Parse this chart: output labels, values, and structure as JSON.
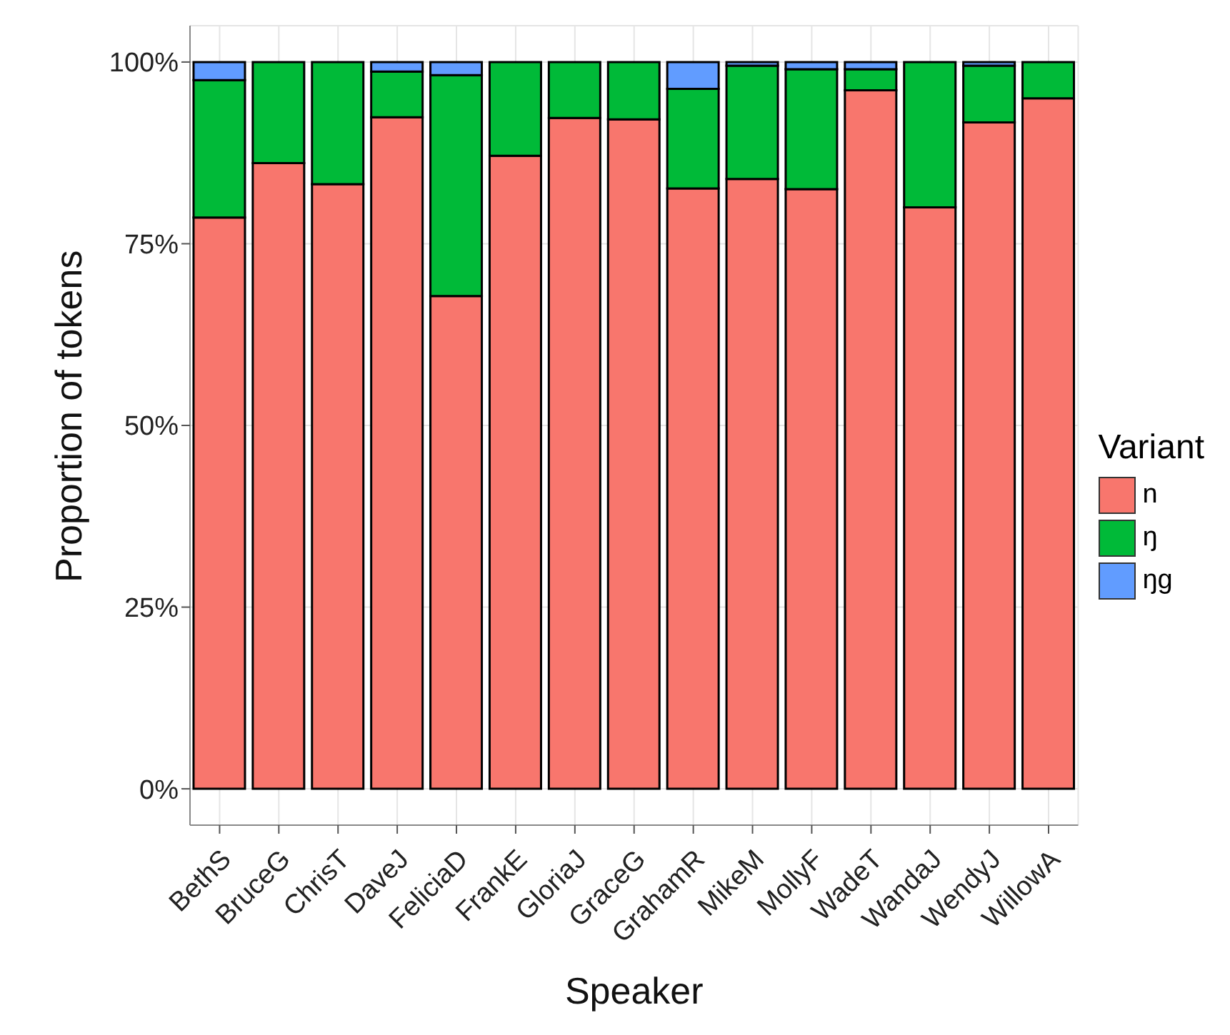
{
  "chart_data": {
    "type": "bar",
    "stacked": true,
    "xlabel": "Speaker",
    "ylabel": "Proportion of tokens",
    "legend_title": "Variant",
    "legend": "right",
    "grid": true,
    "categories": [
      "BethS",
      "BruceG",
      "ChrisT",
      "DaveJ",
      "FeliciaD",
      "FrankE",
      "GloriaJ",
      "GraceG",
      "GrahamR",
      "MikeM",
      "MollyF",
      "WadeT",
      "WandaJ",
      "WendyJ",
      "WillowA"
    ],
    "series": [
      {
        "name": "n",
        "color": "#f8766d",
        "values": [
          78.6,
          86.1,
          83.2,
          92.4,
          67.8,
          87.1,
          92.3,
          92.1,
          82.6,
          83.9,
          82.5,
          96.1,
          80.0,
          91.7,
          95.0
        ]
      },
      {
        "name": "ŋ",
        "color": "#00ba38",
        "values": [
          18.9,
          13.9,
          16.8,
          6.3,
          30.4,
          12.9,
          7.7,
          7.9,
          13.7,
          15.6,
          16.5,
          2.9,
          20.0,
          7.8,
          5.0
        ]
      },
      {
        "name": "ŋg",
        "color": "#619cff",
        "values": [
          2.5,
          0,
          0,
          1.3,
          1.8,
          0,
          0,
          0,
          3.7,
          0.5,
          1.0,
          1.0,
          0,
          0.5,
          0
        ]
      }
    ],
    "ylim": [
      -5,
      105
    ],
    "yticks": [
      {
        "value": 0,
        "label": "0%"
      },
      {
        "value": 25,
        "label": "25%"
      },
      {
        "value": 50,
        "label": "50%"
      },
      {
        "value": 75,
        "label": "75%"
      },
      {
        "value": 100,
        "label": "100%"
      }
    ]
  }
}
